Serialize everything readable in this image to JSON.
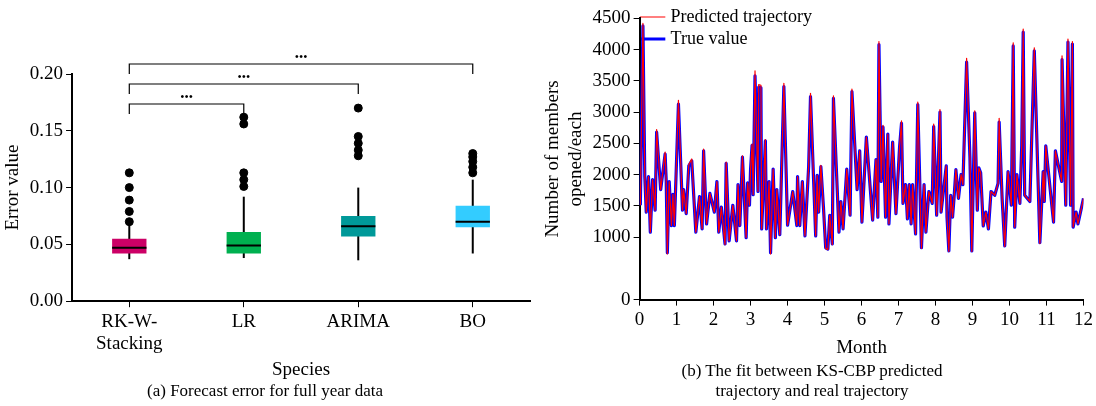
{
  "chart_data": [
    {
      "type": "box",
      "title": "(a) Forecast error for full year data",
      "xlabel": "Species",
      "ylabel": "Error value",
      "categories": [
        "RK-W-Stacking",
        "LR",
        "ARIMA",
        "BO"
      ],
      "colors": [
        "#cc0066",
        "#00b050",
        "#009999",
        "#33ccff"
      ],
      "boxes": [
        {
          "low": 0.037,
          "q1": 0.042,
          "median": 0.047,
          "q3": 0.055,
          "high": 0.068,
          "outliers": [
            0.07,
            0.079,
            0.089,
            0.1,
            0.113
          ]
        },
        {
          "low": 0.038,
          "q1": 0.042,
          "median": 0.049,
          "q3": 0.061,
          "high": 0.092,
          "outliers": [
            0.101,
            0.107,
            0.113,
            0.156,
            0.162
          ]
        },
        {
          "low": 0.036,
          "q1": 0.057,
          "median": 0.066,
          "q3": 0.075,
          "high": 0.1,
          "outliers": [
            0.128,
            0.133,
            0.139,
            0.145,
            0.17
          ]
        },
        {
          "low": 0.042,
          "q1": 0.065,
          "median": 0.07,
          "q3": 0.084,
          "high": 0.107,
          "outliers": [
            0.113,
            0.118,
            0.123,
            0.127,
            0.13
          ]
        }
      ],
      "ylim": [
        0,
        0.2
      ],
      "yticks": [
        {
          "value": 0,
          "label": "0.00"
        },
        {
          "value": 0.05,
          "label": "0.05"
        },
        {
          "value": 0.1,
          "label": "0.10"
        },
        {
          "value": 0.15,
          "label": "0.15"
        },
        {
          "value": 0.2,
          "label": "0.20"
        }
      ],
      "marker": "circle",
      "grid": false,
      "legend": false,
      "annotations": [
        "•••",
        "•••",
        "•••"
      ]
    },
    {
      "type": "line",
      "title": "(b) The fit between KS-CBP predicted trajectory and real trajectory",
      "xlabel": "Month",
      "ylabel": "Number of members opened/each",
      "x": [
        0.02,
        0.09,
        0.14,
        0.18,
        0.24,
        0.29,
        0.35,
        0.42,
        0.46,
        0.57,
        0.69,
        0.72,
        0.75,
        0.8,
        0.86,
        0.9,
        0.94,
        1.05,
        1.16,
        1.19,
        1.26,
        1.33,
        1.41,
        1.52,
        1.62,
        1.69,
        1.73,
        1.81,
        1.9,
        2.02,
        2.09,
        2.14,
        2.21,
        2.31,
        2.34,
        2.42,
        2.52,
        2.62,
        2.66,
        2.71,
        2.78,
        2.88,
        2.92,
        2.97,
        3.0,
        3.04,
        3.07,
        3.12,
        3.2,
        3.22,
        3.28,
        3.3,
        3.4,
        3.43,
        3.5,
        3.54,
        3.61,
        3.67,
        3.71,
        3.79,
        3.9,
        4.0,
        4.14,
        4.25,
        4.27,
        4.33,
        4.4,
        4.47,
        4.57,
        4.62,
        4.76,
        4.8,
        4.84,
        4.9,
        4.97,
        5.03,
        5.09,
        5.14,
        5.21,
        5.24,
        5.39,
        5.44,
        5.5,
        5.6,
        5.69,
        5.74,
        5.88,
        5.95,
        6.01,
        6.13,
        6.3,
        6.39,
        6.44,
        6.47,
        6.53,
        6.58,
        6.65,
        6.71,
        6.74,
        6.84,
        6.93,
        7.03,
        7.08,
        7.12,
        7.19,
        7.24,
        7.29,
        7.34,
        7.38,
        7.41,
        7.46,
        7.52,
        7.62,
        7.69,
        7.74,
        7.82,
        7.91,
        7.95,
        8.03,
        8.12,
        8.15,
        8.29,
        8.31,
        8.36,
        8.41,
        8.46,
        8.5,
        8.55,
        8.62,
        8.69,
        8.74,
        8.84,
        8.93,
        8.98,
        9.06,
        9.13,
        9.17,
        9.22,
        9.29,
        9.36,
        9.43,
        9.5,
        9.6,
        9.69,
        9.72,
        9.8,
        9.87,
        9.96,
        10.05,
        10.1,
        10.14,
        10.2,
        10.28,
        10.33,
        10.37,
        10.41,
        10.55,
        10.67,
        10.82,
        10.91,
        10.94,
        10.98,
        11.19,
        11.24,
        11.41,
        11.42,
        11.52,
        11.58,
        11.65,
        11.7,
        11.72,
        11.8,
        11.85,
        12.0
      ],
      "series": [
        {
          "name": "True value",
          "color": "#0000ff",
          "values": [
            1510,
            4380,
            1970,
            1400,
            1970,
            1080,
            1920,
            1430,
            2680,
            1760,
            2330,
            1890,
            750,
            1890,
            1185,
            1685,
            1185,
            3130,
            1430,
            1760,
            1375,
            2140,
            2220,
            1080,
            1650,
            1130,
            2380,
            1210,
            1700,
            1400,
            1890,
            1080,
            1480,
            890,
            2180,
            940,
            1510,
            940,
            1840,
            1185,
            2280,
            990,
            1870,
            1510,
            2090,
            2470,
            1680,
            3580,
            1730,
            3400,
            3390,
            1130,
            2540,
            1130,
            1890,
            750,
            2090,
            990,
            1760,
            1040,
            3410,
            1190,
            1730,
            1185,
            1970,
            1185,
            1890,
            1020,
            2130,
            3250,
            1020,
            1990,
            1400,
            2130,
            1480,
            830,
            810,
            1350,
            890,
            3220,
            1080,
            1570,
            1130,
            2090,
            1350,
            3330,
            1760,
            2380,
            1240,
            2600,
            1270,
            2240,
            1320,
            4080,
            1890,
            2760,
            1320,
            2650,
            1210,
            2520,
            1375,
            2460,
            2820,
            1540,
            1840,
            1290,
            1840,
            1210,
            1840,
            1540,
            1050,
            3120,
            830,
            1840,
            1080,
            1730,
            1540,
            2770,
            1350,
            3000,
            1400,
            2140,
            1320,
            780,
            1670,
            1320,
            1620,
            2080,
            1620,
            2000,
            1840,
            3800,
            2270,
            780,
            2990,
            1430,
            2110,
            2030,
            1180,
            1400,
            1130,
            1730,
            1670,
            1860,
            2840,
            1620,
            860,
            2050,
            1510,
            4060,
            1160,
            2000,
            1540,
            2460,
            4280,
            1670,
            1570,
            3980,
            910,
            2050,
            1570,
            2460,
            1240,
            2380,
            1890,
            3840,
            1510,
            4120,
            1510,
            4090,
            1160,
            1400,
            1210,
            1620
          ]
        },
        {
          "name": "Predicted trajectory",
          "color": "#ff0000",
          "values": [
            1510,
            4420,
            1970,
            1400,
            1970,
            1080,
            1920,
            1430,
            2720,
            1760,
            2360,
            1890,
            730,
            1890,
            1185,
            1685,
            1185,
            3190,
            1430,
            1760,
            1375,
            2160,
            2250,
            1080,
            1650,
            1130,
            2410,
            1210,
            1700,
            1400,
            1890,
            1080,
            1480,
            880,
            2200,
            940,
            1510,
            940,
            1840,
            1185,
            2300,
            990,
            1870,
            1510,
            2090,
            2490,
            1680,
            3660,
            1730,
            3440,
            3430,
            1130,
            2560,
            1130,
            1890,
            730,
            2090,
            990,
            1760,
            1040,
            3460,
            1190,
            1730,
            1185,
            1970,
            1185,
            1890,
            1020,
            2150,
            3300,
            1020,
            1990,
            1400,
            2150,
            1480,
            820,
            800,
            1350,
            880,
            3260,
            1080,
            1570,
            1130,
            2090,
            1350,
            3370,
            1760,
            2380,
            1240,
            2600,
            1270,
            2240,
            1320,
            4130,
            1890,
            2790,
            1320,
            2650,
            1210,
            2520,
            1375,
            2460,
            2860,
            1540,
            1840,
            1290,
            1840,
            1210,
            1840,
            1540,
            1050,
            3160,
            820,
            1840,
            1080,
            1730,
            1540,
            2810,
            1350,
            3040,
            1400,
            2140,
            1320,
            770,
            1670,
            1320,
            1620,
            2080,
            1620,
            2000,
            1840,
            3860,
            2270,
            770,
            3020,
            1430,
            2110,
            2030,
            1180,
            1400,
            1130,
            1730,
            1670,
            1860,
            2900,
            1620,
            850,
            2050,
            1510,
            4110,
            1160,
            2000,
            1540,
            2460,
            4330,
            1670,
            1570,
            4030,
            900,
            2050,
            1570,
            2460,
            1240,
            2380,
            1890,
            3900,
            1510,
            4170,
            1510,
            4130,
            1160,
            1400,
            1210,
            1620
          ]
        }
      ],
      "xlim": [
        0,
        12
      ],
      "xticks": [
        0,
        1,
        2,
        3,
        4,
        5,
        6,
        7,
        8,
        9,
        10,
        11,
        12
      ],
      "ylim": [
        0,
        4500
      ],
      "yticks": [
        0,
        1000,
        1500,
        2000,
        2500,
        3000,
        3500,
        4000,
        4500
      ],
      "grid": false,
      "legend": "top left",
      "marker": "none",
      "line_style": "solid"
    }
  ]
}
